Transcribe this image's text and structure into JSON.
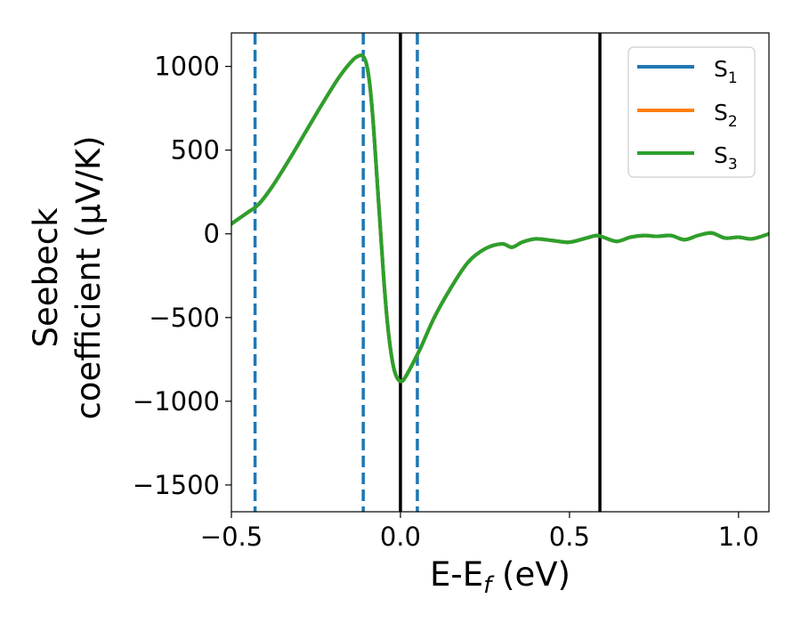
{
  "chart_data": {
    "type": "line",
    "xlabel": {
      "base": "E-E",
      "sub": "f",
      "unit": " (eV)"
    },
    "ylabel": {
      "line1": "Seebeck",
      "line2": "coefficient  (μV/K)"
    },
    "xlim": [
      -0.5,
      1.09
    ],
    "ylim": [
      -1660,
      1200
    ],
    "xticks": [
      -0.5,
      0.0,
      0.5,
      1.0
    ],
    "xtick_labels": [
      "−0.5",
      "0.0",
      "0.5",
      "1.0"
    ],
    "yticks": [
      -1500,
      -1000,
      -500,
      0,
      500,
      1000
    ],
    "ytick_labels": [
      "−1500",
      "−1000",
      "−500",
      "0",
      "500",
      "1000"
    ],
    "grid": false,
    "legend_position": "top-right",
    "series": [
      {
        "name": "S",
        "sub": "1",
        "color": "#1f77b4"
      },
      {
        "name": "S",
        "sub": "2",
        "color": "#ff7f0e"
      },
      {
        "name": "S",
        "sub": "3",
        "color": "#2ca02c"
      }
    ],
    "curve": {
      "x": [
        -0.5,
        -0.45,
        -0.42,
        -0.38,
        -0.33,
        -0.28,
        -0.23,
        -0.18,
        -0.14,
        -0.12,
        -0.11,
        -0.1,
        -0.09,
        -0.08,
        -0.07,
        -0.06,
        -0.05,
        -0.04,
        -0.03,
        -0.02,
        -0.01,
        0.0,
        0.01,
        0.03,
        0.06,
        0.1,
        0.15,
        0.2,
        0.25,
        0.3,
        0.33,
        0.36,
        0.4,
        0.45,
        0.5,
        0.55,
        0.58,
        0.6,
        0.64,
        0.68,
        0.72,
        0.76,
        0.8,
        0.84,
        0.88,
        0.92,
        0.96,
        1.0,
        1.04,
        1.09
      ],
      "y": [
        60,
        130,
        175,
        280,
        440,
        610,
        780,
        940,
        1040,
        1065,
        1060,
        1010,
        880,
        650,
        350,
        50,
        -250,
        -500,
        -680,
        -800,
        -860,
        -880,
        -870,
        -800,
        -680,
        -500,
        -320,
        -170,
        -90,
        -60,
        -80,
        -50,
        -30,
        -40,
        -50,
        -25,
        -10,
        -20,
        -45,
        -20,
        -10,
        -15,
        -10,
        -35,
        -10,
        5,
        -25,
        -20,
        -30,
        0
      ]
    },
    "vlines": [
      {
        "x": -0.43,
        "style": "dashed",
        "color": "#1f77b4"
      },
      {
        "x": -0.11,
        "style": "dashed",
        "color": "#1f77b4"
      },
      {
        "x": 0.05,
        "style": "dashed",
        "color": "#1f77b4"
      },
      {
        "x": 0.0,
        "style": "solid",
        "color": "#000000"
      },
      {
        "x": 0.59,
        "style": "solid",
        "color": "#000000"
      }
    ]
  }
}
